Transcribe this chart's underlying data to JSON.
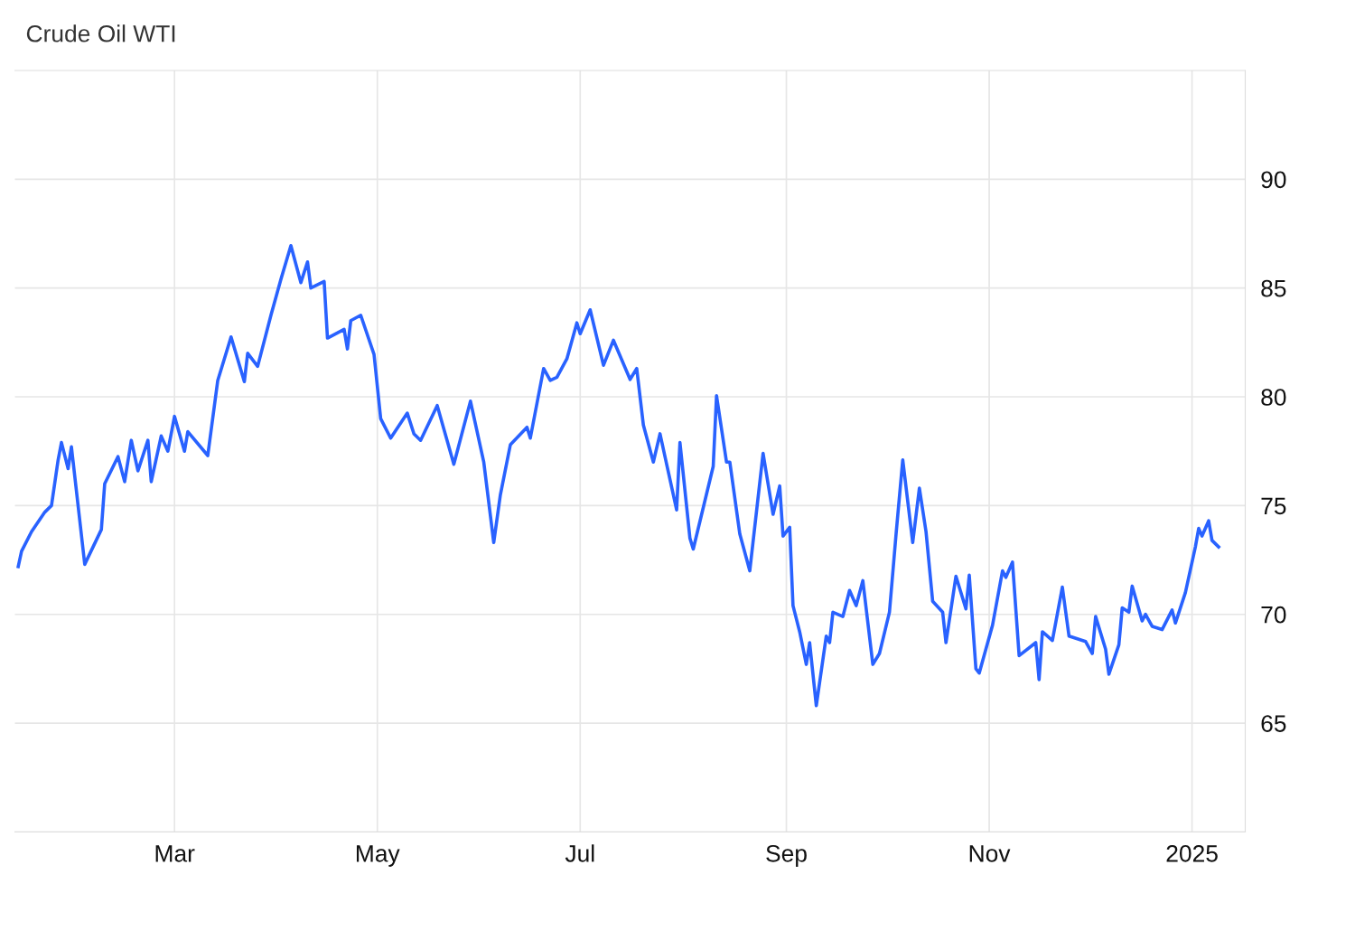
{
  "chart_data": {
    "type": "line",
    "title": "Crude Oil WTI",
    "x": [
      "2024-01-14",
      "2024-01-15",
      "2024-01-18",
      "2024-01-22",
      "2024-01-24",
      "2024-01-26",
      "2024-01-27",
      "2024-01-29",
      "2024-01-30",
      "2024-02-03",
      "2024-02-08",
      "2024-02-09",
      "2024-02-13",
      "2024-02-15",
      "2024-02-17",
      "2024-02-19",
      "2024-02-22",
      "2024-02-23",
      "2024-02-26",
      "2024-02-28",
      "2024-03-01",
      "2024-03-04",
      "2024-03-05",
      "2024-03-11",
      "2024-03-14",
      "2024-03-18",
      "2024-03-22",
      "2024-03-23",
      "2024-03-26",
      "2024-03-30",
      "2024-04-02",
      "2024-04-05",
      "2024-04-08",
      "2024-04-10",
      "2024-04-11",
      "2024-04-15",
      "2024-04-16",
      "2024-04-21",
      "2024-04-22",
      "2024-04-23",
      "2024-04-26",
      "2024-04-30",
      "2024-05-02",
      "2024-05-05",
      "2024-05-10",
      "2024-05-12",
      "2024-05-14",
      "2024-05-19",
      "2024-05-24",
      "2024-05-29",
      "2024-06-02",
      "2024-06-05",
      "2024-06-07",
      "2024-06-10",
      "2024-06-15",
      "2024-06-16",
      "2024-06-20",
      "2024-06-22",
      "2024-06-24",
      "2024-06-27",
      "2024-06-30",
      "2024-07-01",
      "2024-07-04",
      "2024-07-08",
      "2024-07-11",
      "2024-07-16",
      "2024-07-18",
      "2024-07-20",
      "2024-07-23",
      "2024-07-25",
      "2024-07-30",
      "2024-07-31",
      "2024-08-03",
      "2024-08-04",
      "2024-08-10",
      "2024-08-11",
      "2024-08-14",
      "2024-08-15",
      "2024-08-18",
      "2024-08-21",
      "2024-08-25",
      "2024-08-28",
      "2024-08-30",
      "2024-08-31",
      "2024-09-02",
      "2024-09-03",
      "2024-09-05",
      "2024-09-07",
      "2024-09-08",
      "2024-09-10",
      "2024-09-13",
      "2024-09-14",
      "2024-09-15",
      "2024-09-18",
      "2024-09-20",
      "2024-09-22",
      "2024-09-24",
      "2024-09-27",
      "2024-09-29",
      "2024-10-02",
      "2024-10-04",
      "2024-10-06",
      "2024-10-09",
      "2024-10-11",
      "2024-10-13",
      "2024-10-15",
      "2024-10-18",
      "2024-10-19",
      "2024-10-22",
      "2024-10-25",
      "2024-10-26",
      "2024-10-28",
      "2024-10-29",
      "2024-11-02",
      "2024-11-05",
      "2024-11-06",
      "2024-11-08",
      "2024-11-10",
      "2024-11-15",
      "2024-11-16",
      "2024-11-17",
      "2024-11-20",
      "2024-11-23",
      "2024-11-25",
      "2024-11-30",
      "2024-12-02",
      "2024-12-03",
      "2024-12-06",
      "2024-12-07",
      "2024-12-10",
      "2024-12-11",
      "2024-12-13",
      "2024-12-14",
      "2024-12-17",
      "2024-12-18",
      "2024-12-20",
      "2024-12-23",
      "2024-12-26",
      "2024-12-27",
      "2024-12-30",
      "2025-01-02",
      "2025-01-03",
      "2025-01-04",
      "2025-01-06",
      "2025-01-07",
      "2025-01-09"
    ],
    "series": [
      {
        "color": "#2962ff",
        "values": [
          72.2,
          72.9,
          73.8,
          74.7,
          75.0,
          77.1,
          77.9,
          76.7,
          77.7,
          72.3,
          73.9,
          76.0,
          77.25,
          76.1,
          78.0,
          76.6,
          78.0,
          76.1,
          78.2,
          77.5,
          79.1,
          77.5,
          78.4,
          77.3,
          80.75,
          82.75,
          80.7,
          82.0,
          81.4,
          83.75,
          85.4,
          86.95,
          85.25,
          86.2,
          85.0,
          85.3,
          82.7,
          83.1,
          82.2,
          83.5,
          83.75,
          81.95,
          79.0,
          78.1,
          79.25,
          78.3,
          78.0,
          79.6,
          76.9,
          79.8,
          77.0,
          73.3,
          75.5,
          77.8,
          78.6,
          78.1,
          81.3,
          80.75,
          80.9,
          81.75,
          83.4,
          82.9,
          84.0,
          81.45,
          82.6,
          80.8,
          81.3,
          78.7,
          77.0,
          78.3,
          74.8,
          77.9,
          73.5,
          73.0,
          76.8,
          80.05,
          77.0,
          77.0,
          73.7,
          72.0,
          77.4,
          74.6,
          75.9,
          73.6,
          74.0,
          70.4,
          69.2,
          67.7,
          68.7,
          65.8,
          69.0,
          68.7,
          70.1,
          69.9,
          71.1,
          70.4,
          71.55,
          67.7,
          68.2,
          70.1,
          73.7,
          77.1,
          73.3,
          75.8,
          73.8,
          70.6,
          70.1,
          68.7,
          71.75,
          70.25,
          71.8,
          67.5,
          67.3,
          69.5,
          72.0,
          71.7,
          72.4,
          68.1,
          68.7,
          67.0,
          69.2,
          68.8,
          71.25,
          69.0,
          68.75,
          68.2,
          69.9,
          68.4,
          67.25,
          68.6,
          70.3,
          70.1,
          71.3,
          69.7,
          70.0,
          69.45,
          69.3,
          70.2,
          69.6,
          71.0,
          73.1,
          73.95,
          73.6,
          74.3,
          73.4,
          73.1
        ]
      }
    ],
    "xlim": [
      "2024-01-13",
      "2025-01-17"
    ],
    "xticks": [
      {
        "value": "2024-03-01",
        "label": "Mar"
      },
      {
        "value": "2024-05-01",
        "label": "May"
      },
      {
        "value": "2024-07-01",
        "label": "Jul"
      },
      {
        "value": "2024-09-01",
        "label": "Sep"
      },
      {
        "value": "2024-11-01",
        "label": "Nov"
      },
      {
        "value": "2025-01-01",
        "label": "2025"
      }
    ],
    "ylim": [
      60,
      95
    ],
    "yticks": [
      65,
      70,
      75,
      80,
      85,
      90
    ],
    "grid": true,
    "line_style": "solid"
  }
}
